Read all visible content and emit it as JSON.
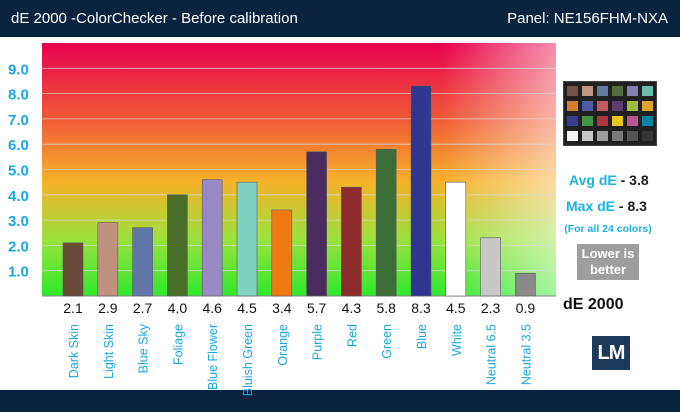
{
  "header": {
    "title": "dE 2000 -ColorChecker - Before calibration",
    "panel": "Panel: NE156FHM-NXA"
  },
  "stats": {
    "avg_label": "Avg dE",
    "avg_value": "- 3.8",
    "max_label": "Max dE",
    "max_value": "- 8.3",
    "note": "(For all 24 colors)",
    "lower_line1": "Lower is",
    "lower_line2": "better",
    "metric_label": "dE 2000"
  },
  "logo": "LM",
  "checker_colors": [
    "#735244",
    "#c29682",
    "#627a9d",
    "#576c43",
    "#8580b1",
    "#67bdaa",
    "#d67e2c",
    "#505ba6",
    "#c15a63",
    "#5e3c6c",
    "#9dbc40",
    "#e0a32e",
    "#383d96",
    "#469449",
    "#af363c",
    "#e7c71f",
    "#bb5695",
    "#0885a1",
    "#f3f3f2",
    "#c8c8c8",
    "#a0a0a0",
    "#7a7a79",
    "#555555",
    "#343434"
  ],
  "chart_data": {
    "type": "bar",
    "categories": [
      "Dark Skin",
      "Light Skin",
      "Blue Sky",
      "Foliage",
      "Blue Flower",
      "Bluish Green",
      "Orange",
      "Purple",
      "Red",
      "Green",
      "Blue",
      "White",
      "Neutral 6.5",
      "Neutral 3.5"
    ],
    "values": [
      2.1,
      2.9,
      2.7,
      4.0,
      4.6,
      4.5,
      3.4,
      5.7,
      4.3,
      5.8,
      8.3,
      4.5,
      2.3,
      0.9
    ],
    "value_labels": [
      "2.1",
      "2.9",
      "2.7",
      "4.0",
      "4.6",
      "4.5",
      "3.4",
      "5.7",
      "4.3",
      "5.8",
      "8.3",
      "4.5",
      "2.3",
      "0.9"
    ],
    "colors": [
      "#6b4a3a",
      "#c0917f",
      "#5e77a8",
      "#4a6e2a",
      "#9889c4",
      "#7fd1c0",
      "#f07a12",
      "#4a2c5e",
      "#8c2a2c",
      "#3a6e36",
      "#2e3790",
      "#ffffff",
      "#c8c8c8",
      "#8a8a8a"
    ],
    "yticks": [
      "1.0",
      "2.0",
      "3.0",
      "4.0",
      "5.0",
      "6.0",
      "7.0",
      "8.0",
      "9.0"
    ],
    "ylim": [
      0,
      10
    ],
    "xlabel": "",
    "ylabel": ""
  }
}
